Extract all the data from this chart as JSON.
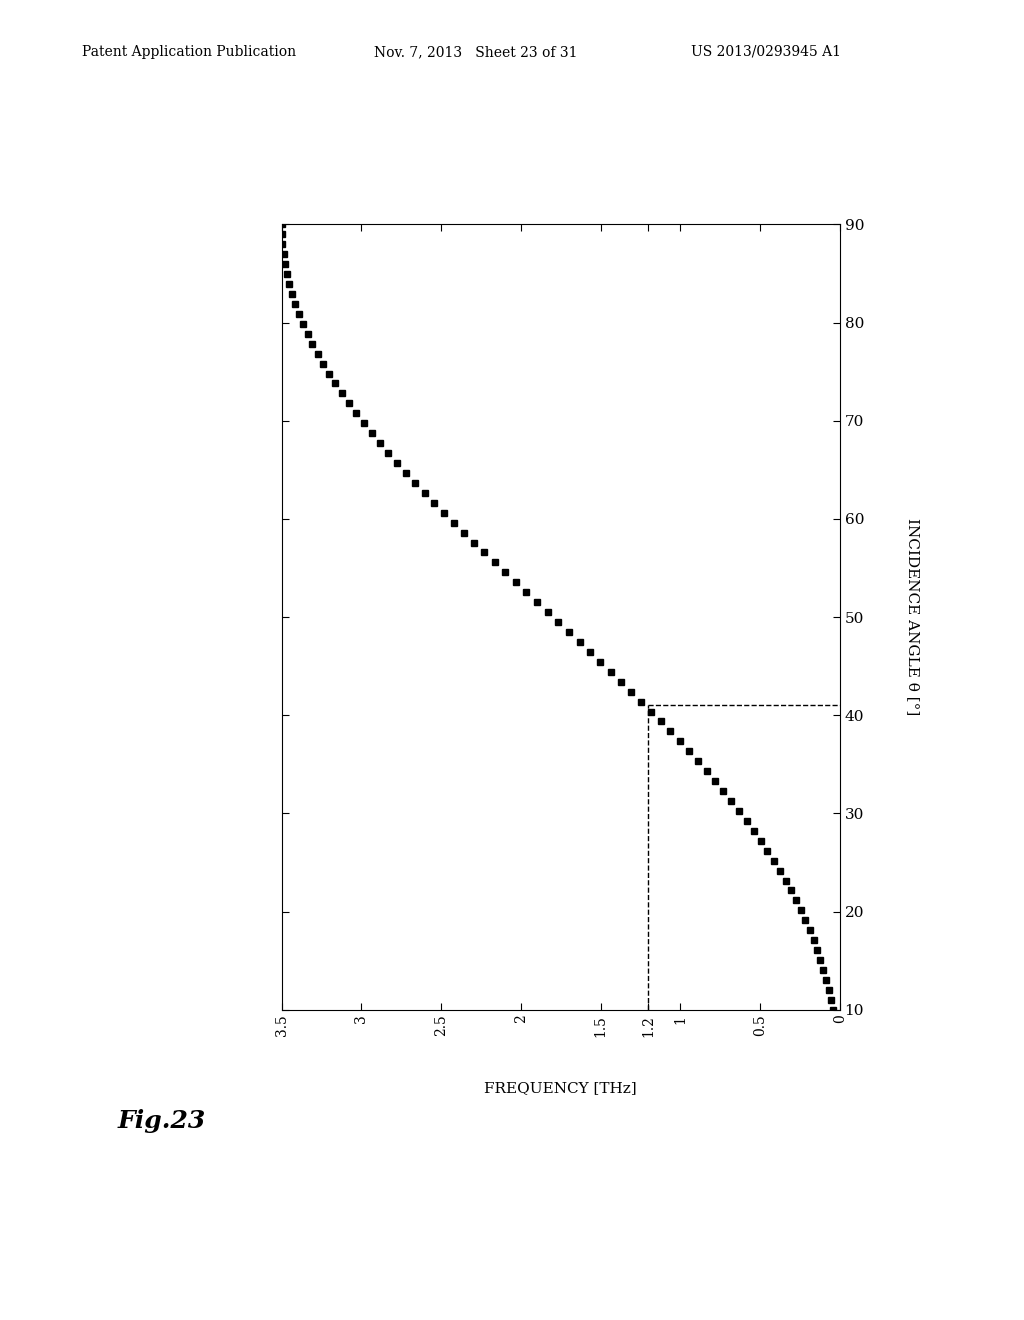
{
  "header_left": "Patent Application Publication",
  "header_mid": "Nov. 7, 2013   Sheet 23 of 31",
  "header_right": "US 2013/0293945 A1",
  "fig_label": "Fig.23",
  "xlabel_screen": "FREQUENCY [THz]",
  "ylabel_screen": "INCIDENCE ANGLE θ [°]",
  "xlim": [
    3.5,
    0
  ],
  "ylim": [
    10,
    90
  ],
  "xticks": [
    3.5,
    3,
    2.5,
    2,
    1.5,
    1.2,
    1,
    0.5,
    0
  ],
  "xtick_labels": [
    "3.5",
    "3",
    "2.5",
    "2",
    "1.5",
    "1.2",
    "1",
    "0.5",
    "0"
  ],
  "yticks": [
    10,
    20,
    30,
    40,
    50,
    60,
    70,
    80,
    90
  ],
  "ytick_labels": [
    "10",
    "20",
    "30",
    "40",
    "50",
    "60",
    "70",
    "80",
    "90"
  ],
  "dashed_freq": 1.2,
  "dashed_theta": 41.0,
  "marker_color": "#000000",
  "dashed_color": "#000000",
  "background_color": "#ffffff",
  "curve_amplitude": 3.5,
  "curve_exponent": 2.5
}
